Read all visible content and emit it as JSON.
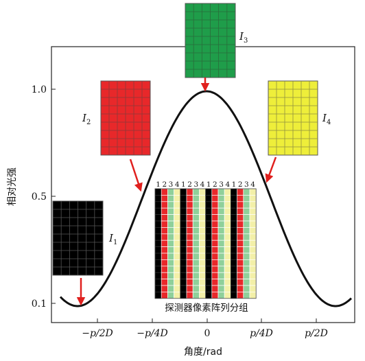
{
  "chart_data": {
    "type": "line",
    "xlabel": "角度/rad",
    "ylabel": "相对光强",
    "x_ticks": [
      "−p/2D",
      "−p/4D",
      "0",
      "p/4D",
      "p/2D"
    ],
    "y_ticks": [
      "1.0",
      "0.5",
      "0.1"
    ]
  },
  "panels": {
    "I1": {
      "label": "I",
      "sub": "1",
      "color": "#000000"
    },
    "I2": {
      "label": "I",
      "sub": "2",
      "color": "#e8282a"
    },
    "I3": {
      "label": "I",
      "sub": "3",
      "color": "#1f9d4a"
    },
    "I4": {
      "label": "I",
      "sub": "4",
      "color": "#eeee3a"
    }
  },
  "detector": {
    "caption": "探测器像素阵列分组",
    "group_numbers": [
      "1",
      "2",
      "3",
      "4",
      "1",
      "2",
      "3",
      "4",
      "1",
      "2",
      "3",
      "4",
      "1",
      "2",
      "3",
      "4"
    ],
    "column_colors": [
      "#000000",
      "#e8282a",
      "#8fd09a",
      "#f3f0a8"
    ]
  },
  "arrow_color": "#e0201e"
}
